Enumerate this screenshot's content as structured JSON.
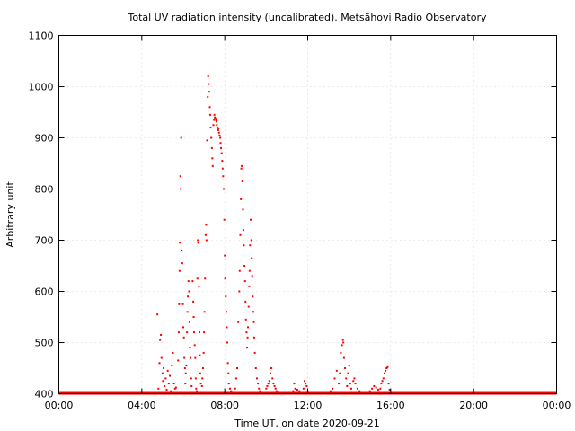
{
  "chart_data": {
    "type": "scatter",
    "title": "Total UV radiation intensity (uncalibrated). Metsähovi Radio Observatory",
    "xlabel": "Time UT, on date 2020-09-21",
    "ylabel": "Arbitrary unit",
    "xlim": [
      0,
      24
    ],
    "ylim": [
      400,
      1100
    ],
    "x_ticks": [
      {
        "value": 0,
        "label": "00:00"
      },
      {
        "value": 4,
        "label": "04:00"
      },
      {
        "value": 8,
        "label": "08:00"
      },
      {
        "value": 12,
        "label": "12:00"
      },
      {
        "value": 16,
        "label": "16:00"
      },
      {
        "value": 20,
        "label": "20:00"
      },
      {
        "value": 24,
        "label": "00:00"
      }
    ],
    "y_ticks": [
      {
        "value": 400,
        "label": "400"
      },
      {
        "value": 500,
        "label": "500"
      },
      {
        "value": 600,
        "label": "600"
      },
      {
        "value": 700,
        "label": "700"
      },
      {
        "value": 800,
        "label": "800"
      },
      {
        "value": 900,
        "label": "900"
      },
      {
        "value": 1000,
        "label": "1000"
      },
      {
        "value": 1100,
        "label": "1100"
      }
    ],
    "grid": true,
    "marker_color": "#ff0000",
    "baseline": {
      "y": 400,
      "x_start": 0,
      "x_end": 24
    },
    "series": [
      {
        "values": [
          [
            4.75,
            555
          ],
          [
            4.8,
            410
          ],
          [
            4.85,
            460
          ],
          [
            4.88,
            505
          ],
          [
            4.92,
            515
          ],
          [
            4.95,
            470
          ],
          [
            5.0,
            440
          ],
          [
            5.02,
            425
          ],
          [
            5.05,
            450
          ],
          [
            5.1,
            415
          ],
          [
            5.15,
            430
          ],
          [
            5.2,
            408
          ],
          [
            5.25,
            445
          ],
          [
            5.3,
            420
          ],
          [
            5.35,
            435
          ],
          [
            5.4,
            405
          ],
          [
            5.45,
            455
          ],
          [
            5.5,
            480
          ],
          [
            5.55,
            420
          ],
          [
            5.6,
            410
          ],
          [
            5.65,
            412
          ],
          [
            5.75,
            465
          ],
          [
            5.78,
            520
          ],
          [
            5.8,
            575
          ],
          [
            5.82,
            640
          ],
          [
            5.84,
            695
          ],
          [
            5.86,
            825
          ],
          [
            5.88,
            800
          ],
          [
            5.9,
            900
          ],
          [
            5.92,
            680
          ],
          [
            5.95,
            655
          ],
          [
            5.98,
            575
          ],
          [
            6.0,
            530
          ],
          [
            6.03,
            510
          ],
          [
            6.05,
            470
          ],
          [
            6.08,
            450
          ],
          [
            6.1,
            420
          ],
          [
            6.12,
            440
          ],
          [
            6.15,
            455
          ],
          [
            6.18,
            520
          ],
          [
            6.2,
            560
          ],
          [
            6.22,
            590
          ],
          [
            6.25,
            620
          ],
          [
            6.28,
            600
          ],
          [
            6.3,
            540
          ],
          [
            6.32,
            490
          ],
          [
            6.35,
            470
          ],
          [
            6.38,
            430
          ],
          [
            6.4,
            415
          ],
          [
            6.45,
            620
          ],
          [
            6.48,
            580
          ],
          [
            6.5,
            550
          ],
          [
            6.52,
            520
          ],
          [
            6.55,
            495
          ],
          [
            6.58,
            470
          ],
          [
            6.6,
            430
          ],
          [
            6.62,
            410
          ],
          [
            6.65,
            405
          ],
          [
            6.68,
            625
          ],
          [
            6.7,
            700
          ],
          [
            6.72,
            695
          ],
          [
            6.75,
            610
          ],
          [
            6.78,
            520
          ],
          [
            6.8,
            475
          ],
          [
            6.82,
            440
          ],
          [
            6.85,
            420
          ],
          [
            6.9,
            415
          ],
          [
            6.92,
            430
          ],
          [
            6.95,
            450
          ],
          [
            6.98,
            480
          ],
          [
            7.0,
            520
          ],
          [
            7.02,
            560
          ],
          [
            7.05,
            625
          ],
          [
            7.08,
            710
          ],
          [
            7.1,
            730
          ],
          [
            7.12,
            700
          ],
          [
            7.15,
            895
          ],
          [
            7.18,
            980
          ],
          [
            7.2,
            1020
          ],
          [
            7.22,
            1005
          ],
          [
            7.25,
            990
          ],
          [
            7.28,
            960
          ],
          [
            7.3,
            945
          ],
          [
            7.32,
            920
          ],
          [
            7.35,
            900
          ],
          [
            7.38,
            880
          ],
          [
            7.4,
            860
          ],
          [
            7.42,
            845
          ],
          [
            7.45,
            925
          ],
          [
            7.48,
            935
          ],
          [
            7.5,
            945
          ],
          [
            7.52,
            940
          ],
          [
            7.55,
            938
          ],
          [
            7.58,
            935
          ],
          [
            7.6,
            932
          ],
          [
            7.62,
            925
          ],
          [
            7.65,
            920
          ],
          [
            7.68,
            915
          ],
          [
            7.7,
            918
          ],
          [
            7.72,
            910
          ],
          [
            7.75,
            905
          ],
          [
            7.78,
            900
          ],
          [
            7.8,
            890
          ],
          [
            7.82,
            880
          ],
          [
            7.85,
            870
          ],
          [
            7.88,
            855
          ],
          [
            7.9,
            840
          ],
          [
            7.92,
            825
          ],
          [
            7.95,
            800
          ],
          [
            7.98,
            740
          ],
          [
            8.0,
            670
          ],
          [
            8.02,
            625
          ],
          [
            8.05,
            590
          ],
          [
            8.08,
            560
          ],
          [
            8.1,
            530
          ],
          [
            8.12,
            500
          ],
          [
            8.15,
            460
          ],
          [
            8.18,
            440
          ],
          [
            8.2,
            420
          ],
          [
            8.25,
            410
          ],
          [
            8.3,
            405
          ],
          [
            8.35,
            402
          ],
          [
            8.4,
            400
          ],
          [
            8.5,
            410
          ],
          [
            8.55,
            430
          ],
          [
            8.6,
            450
          ],
          [
            8.65,
            540
          ],
          [
            8.7,
            600
          ],
          [
            8.72,
            640
          ],
          [
            8.75,
            710
          ],
          [
            8.78,
            780
          ],
          [
            8.8,
            840
          ],
          [
            8.82,
            845
          ],
          [
            8.85,
            815
          ],
          [
            8.88,
            760
          ],
          [
            8.9,
            720
          ],
          [
            8.92,
            690
          ],
          [
            8.95,
            650
          ],
          [
            8.98,
            620
          ],
          [
            9.0,
            580
          ],
          [
            9.02,
            545
          ],
          [
            9.05,
            520
          ],
          [
            9.08,
            490
          ],
          [
            9.1,
            510
          ],
          [
            9.12,
            530
          ],
          [
            9.15,
            570
          ],
          [
            9.18,
            610
          ],
          [
            9.2,
            640
          ],
          [
            9.22,
            690
          ],
          [
            9.25,
            740
          ],
          [
            9.28,
            700
          ],
          [
            9.3,
            665
          ],
          [
            9.32,
            630
          ],
          [
            9.35,
            590
          ],
          [
            9.38,
            560
          ],
          [
            9.4,
            540
          ],
          [
            9.42,
            510
          ],
          [
            9.45,
            480
          ],
          [
            9.5,
            450
          ],
          [
            9.55,
            430
          ],
          [
            9.6,
            420
          ],
          [
            9.65,
            410
          ],
          [
            9.7,
            405
          ],
          [
            10.0,
            410
          ],
          [
            10.05,
            415
          ],
          [
            10.1,
            420
          ],
          [
            10.15,
            425
          ],
          [
            10.2,
            440
          ],
          [
            10.25,
            450
          ],
          [
            10.3,
            430
          ],
          [
            10.35,
            420
          ],
          [
            10.4,
            415
          ],
          [
            10.45,
            410
          ],
          [
            10.5,
            405
          ],
          [
            10.6,
            402
          ],
          [
            11.3,
            405
          ],
          [
            11.35,
            420
          ],
          [
            11.4,
            410
          ],
          [
            11.5,
            408
          ],
          [
            11.6,
            405
          ],
          [
            11.8,
            410
          ],
          [
            11.85,
            425
          ],
          [
            11.9,
            420
          ],
          [
            11.95,
            415
          ],
          [
            12.0,
            405
          ],
          [
            13.1,
            405
          ],
          [
            13.2,
            410
          ],
          [
            13.3,
            430
          ],
          [
            13.4,
            445
          ],
          [
            13.5,
            420
          ],
          [
            13.55,
            440
          ],
          [
            13.6,
            480
          ],
          [
            13.65,
            495
          ],
          [
            13.7,
            505
          ],
          [
            13.72,
            500
          ],
          [
            13.75,
            470
          ],
          [
            13.8,
            450
          ],
          [
            13.85,
            430
          ],
          [
            13.9,
            415
          ],
          [
            13.95,
            440
          ],
          [
            14.0,
            455
          ],
          [
            14.05,
            420
          ],
          [
            14.1,
            410
          ],
          [
            14.2,
            425
          ],
          [
            14.25,
            430
          ],
          [
            14.3,
            420
          ],
          [
            14.4,
            410
          ],
          [
            14.5,
            405
          ],
          [
            15.0,
            405
          ],
          [
            15.1,
            410
          ],
          [
            15.2,
            415
          ],
          [
            15.3,
            412
          ],
          [
            15.4,
            408
          ],
          [
            15.5,
            410
          ],
          [
            15.55,
            420
          ],
          [
            15.6,
            425
          ],
          [
            15.65,
            430
          ],
          [
            15.7,
            440
          ],
          [
            15.75,
            445
          ],
          [
            15.8,
            450
          ],
          [
            15.85,
            452
          ],
          [
            15.9,
            420
          ],
          [
            15.95,
            408
          ]
        ]
      }
    ]
  }
}
